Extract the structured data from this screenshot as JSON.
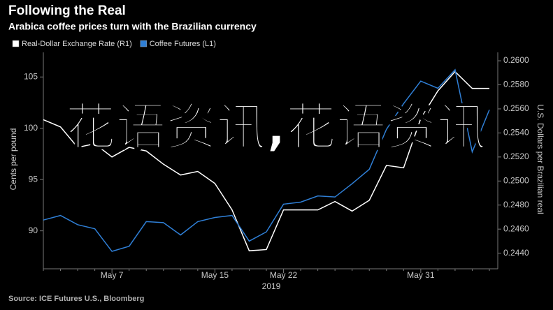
{
  "chart_data": {
    "type": "line",
    "title": "Following the Real",
    "subtitle": "Arabica coffee prices turn with the Brazilian currency",
    "y_label": "Cents per pound",
    "y2_label": "U.S. Dollars per Brazilian real",
    "x_label": "2019",
    "source": "Source: ICE Futures U.S., Bloomberg",
    "watermark": "花语资讯,花语资讯",
    "categories": [
      null,
      null,
      null,
      null,
      "May 7",
      null,
      null,
      null,
      null,
      null,
      "May 15",
      null,
      null,
      null,
      "May 22",
      null,
      null,
      null,
      null,
      null,
      null,
      null,
      "May 31",
      null,
      null,
      null,
      null
    ],
    "series": [
      {
        "name": "Real-Dollar Exchange Rate (R1)",
        "color": "#ffffff",
        "axis": "y2",
        "values": [
          0.2551,
          0.2545,
          0.2528,
          0.2531,
          0.252,
          0.2528,
          0.2525,
          0.2514,
          0.2505,
          0.2508,
          0.2498,
          0.2476,
          0.2442,
          0.2443,
          0.2476,
          0.2476,
          0.2476,
          0.2483,
          0.2475,
          0.2484,
          0.2513,
          0.2511,
          0.2552,
          0.2575,
          0.2591,
          0.2577,
          0.2577
        ]
      },
      {
        "name": "Coffee Futures (L1)",
        "color": "#2f7fd6",
        "values": [
          91.05,
          91.5,
          90.6,
          90.2,
          88.0,
          88.5,
          90.9,
          90.8,
          89.6,
          90.9,
          91.3,
          91.5,
          89.0,
          89.9,
          92.6,
          92.8,
          93.4,
          93.3,
          94.6,
          96.0,
          99.9,
          102.4,
          104.6,
          103.9,
          105.7,
          97.7,
          101.8
        ]
      }
    ],
    "ylim": [
      86.3,
      107.4
    ],
    "yticks": [
      90,
      95,
      100,
      105
    ],
    "y2lim": [
      0.2427,
      0.2607
    ],
    "y2ticks": [
      {
        "value": 0.244,
        "label": "0.2440"
      },
      {
        "value": 0.246,
        "label": "0.2460"
      },
      {
        "value": 0.248,
        "label": "0.2480"
      },
      {
        "value": 0.25,
        "label": "0.2500"
      },
      {
        "value": 0.252,
        "label": "0.2520"
      },
      {
        "value": 0.254,
        "label": "0.2540"
      },
      {
        "value": 0.256,
        "label": "0.2560"
      },
      {
        "value": 0.258,
        "label": "0.2580"
      },
      {
        "value": 0.26,
        "label": "0.2600"
      }
    ]
  }
}
